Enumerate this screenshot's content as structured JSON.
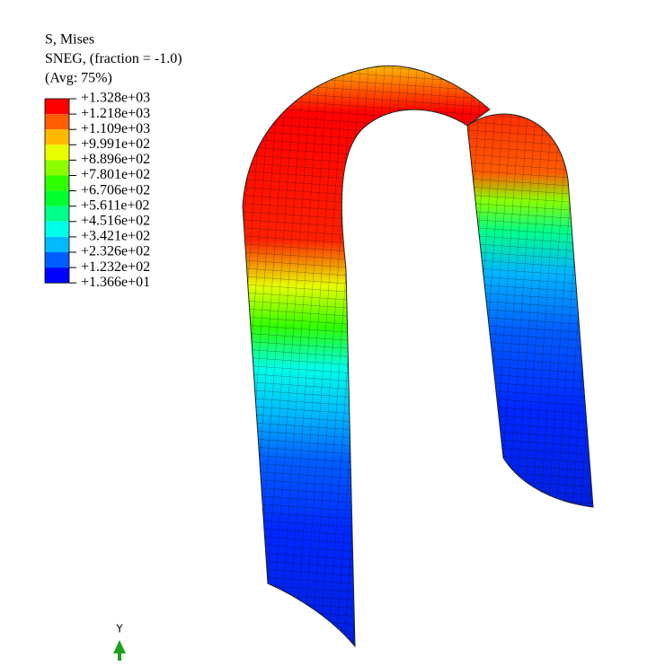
{
  "legend": {
    "title_lines": [
      "S, Mises",
      "SNEG, (fraction = -1.0)",
      "(Avg: 75%)"
    ],
    "labels": [
      "+1.328e+03",
      "+1.218e+03",
      "+1.109e+03",
      "+9.991e+02",
      "+8.896e+02",
      "+7.801e+02",
      "+6.706e+02",
      "+5.611e+02",
      "+4.516e+02",
      "+3.421e+02",
      "+2.326e+02",
      "+1.232e+02",
      "+1.366e+01"
    ],
    "band_colors": [
      "#ff0000",
      "#ff5d00",
      "#ffb900",
      "#e8ff00",
      "#8bff00",
      "#2eff00",
      "#00ff2e",
      "#00ff8b",
      "#00ffe8",
      "#00b9ff",
      "#005dff",
      "#0000ff"
    ]
  },
  "triad": {
    "axis_label": "Y"
  }
}
